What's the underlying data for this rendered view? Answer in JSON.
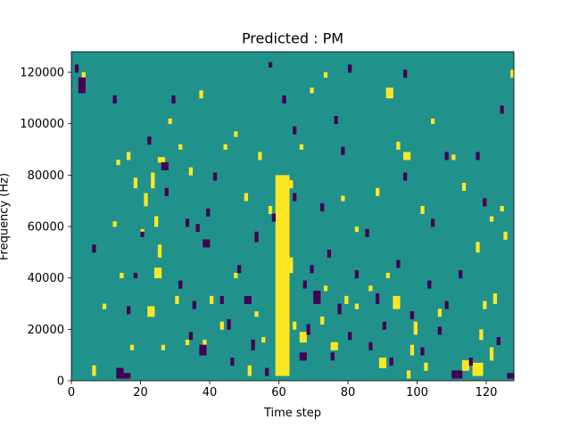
{
  "chart_data": {
    "type": "heatmap",
    "title": "Predicted : PM",
    "xlabel": "Time step",
    "ylabel": "Frequency (Hz)",
    "xlim": [
      0,
      128
    ],
    "ylim": [
      0,
      128000
    ],
    "xticks": [
      0,
      20,
      40,
      60,
      80,
      100,
      120
    ],
    "yticks": [
      0,
      20000,
      40000,
      60000,
      80000,
      100000,
      120000
    ],
    "rows": 128,
    "cols": 128,
    "palette": {
      "background": "#21918c",
      "high": "#fde725",
      "low": "#440154"
    },
    "high_rects": [
      [
        59,
        2,
        4,
        78
      ],
      [
        61,
        60,
        1,
        12
      ],
      [
        6,
        2,
        1,
        4
      ],
      [
        17,
        12,
        1,
        2
      ],
      [
        22,
        25,
        2,
        4
      ],
      [
        24,
        40,
        2,
        4
      ],
      [
        26,
        12,
        1,
        2
      ],
      [
        25,
        48,
        1,
        5
      ],
      [
        30,
        30,
        1,
        3
      ],
      [
        33,
        14,
        1,
        2
      ],
      [
        38,
        12,
        1,
        4
      ],
      [
        40,
        30,
        1,
        3
      ],
      [
        43,
        20,
        1,
        3
      ],
      [
        51,
        2,
        1,
        4
      ],
      [
        53,
        25,
        1,
        2
      ],
      [
        55,
        15,
        1,
        2
      ],
      [
        62,
        42,
        2,
        6
      ],
      [
        64,
        20,
        1,
        3
      ],
      [
        66,
        15,
        2,
        4
      ],
      [
        75,
        12,
        2,
        3
      ],
      [
        73,
        35,
        1,
        2
      ],
      [
        79,
        30,
        1,
        3
      ],
      [
        82,
        28,
        1,
        2
      ],
      [
        86,
        35,
        1,
        2
      ],
      [
        89,
        5,
        2,
        4
      ],
      [
        91,
        40,
        1,
        2
      ],
      [
        93,
        28,
        2,
        5
      ],
      [
        97,
        1,
        1,
        3
      ],
      [
        98,
        10,
        1,
        4
      ],
      [
        99,
        18,
        1,
        5
      ],
      [
        102,
        4,
        1,
        3
      ],
      [
        106,
        25,
        1,
        3
      ],
      [
        113,
        4,
        2,
        4
      ],
      [
        116,
        2,
        3,
        5
      ],
      [
        118,
        16,
        1,
        4
      ],
      [
        119,
        28,
        1,
        3
      ],
      [
        121,
        8,
        1,
        5
      ],
      [
        122,
        30,
        1,
        4
      ],
      [
        125,
        55,
        1,
        3
      ],
      [
        127,
        118,
        1,
        3
      ],
      [
        12,
        60,
        1,
        2
      ],
      [
        13,
        84,
        1,
        2
      ],
      [
        16,
        86,
        1,
        3
      ],
      [
        18,
        75,
        1,
        4
      ],
      [
        20,
        56,
        1,
        3
      ],
      [
        21,
        68,
        1,
        5
      ],
      [
        23,
        75,
        1,
        6
      ],
      [
        24,
        60,
        1,
        4
      ],
      [
        25,
        85,
        2,
        2
      ],
      [
        28,
        100,
        1,
        2
      ],
      [
        31,
        90,
        1,
        2
      ],
      [
        34,
        80,
        1,
        3
      ],
      [
        37,
        110,
        1,
        3
      ],
      [
        44,
        90,
        1,
        2
      ],
      [
        47,
        95,
        1,
        2
      ],
      [
        50,
        70,
        1,
        3
      ],
      [
        54,
        86,
        1,
        3
      ],
      [
        57,
        65,
        1,
        3
      ],
      [
        63,
        75,
        1,
        3
      ],
      [
        66,
        90,
        1,
        2
      ],
      [
        69,
        112,
        1,
        2
      ],
      [
        73,
        118,
        1,
        2
      ],
      [
        78,
        70,
        1,
        2
      ],
      [
        82,
        58,
        1,
        2
      ],
      [
        88,
        72,
        1,
        3
      ],
      [
        91,
        110,
        2,
        4
      ],
      [
        94,
        90,
        1,
        3
      ],
      [
        96,
        86,
        2,
        3
      ],
      [
        101,
        65,
        1,
        3
      ],
      [
        104,
        100,
        1,
        2
      ],
      [
        110,
        86,
        1,
        2
      ],
      [
        113,
        74,
        1,
        3
      ],
      [
        117,
        50,
        1,
        4
      ],
      [
        121,
        62,
        1,
        2
      ],
      [
        124,
        66,
        1,
        2
      ],
      [
        14,
        40,
        1,
        2
      ],
      [
        9,
        28,
        1,
        2
      ],
      [
        3,
        118,
        1,
        2
      ],
      [
        47,
        40,
        1,
        2
      ],
      [
        72,
        22,
        1,
        3
      ]
    ],
    "low_rects": [
      [
        2,
        112,
        2,
        6
      ],
      [
        1,
        120,
        1,
        3
      ],
      [
        13,
        1,
        2,
        4
      ],
      [
        15,
        1,
        2,
        2
      ],
      [
        16,
        26,
        1,
        3
      ],
      [
        20,
        56,
        1,
        2
      ],
      [
        26,
        82,
        2,
        3
      ],
      [
        18,
        40,
        1,
        2
      ],
      [
        33,
        60,
        1,
        3
      ],
      [
        34,
        16,
        1,
        3
      ],
      [
        35,
        28,
        1,
        3
      ],
      [
        36,
        58,
        1,
        3
      ],
      [
        37,
        10,
        2,
        4
      ],
      [
        38,
        52,
        2,
        3
      ],
      [
        39,
        64,
        1,
        3
      ],
      [
        41,
        78,
        1,
        3
      ],
      [
        43,
        30,
        1,
        3
      ],
      [
        45,
        20,
        1,
        4
      ],
      [
        46,
        6,
        1,
        3
      ],
      [
        48,
        42,
        1,
        3
      ],
      [
        50,
        30,
        2,
        3
      ],
      [
        52,
        12,
        1,
        4
      ],
      [
        53,
        54,
        1,
        4
      ],
      [
        56,
        2,
        1,
        3
      ],
      [
        58,
        62,
        1,
        3
      ],
      [
        61,
        108,
        1,
        3
      ],
      [
        64,
        70,
        1,
        3
      ],
      [
        66,
        8,
        2,
        3
      ],
      [
        67,
        36,
        1,
        3
      ],
      [
        68,
        18,
        1,
        4
      ],
      [
        69,
        42,
        1,
        3
      ],
      [
        70,
        30,
        2,
        5
      ],
      [
        72,
        66,
        1,
        3
      ],
      [
        74,
        48,
        1,
        3
      ],
      [
        75,
        8,
        1,
        3
      ],
      [
        76,
        100,
        1,
        3
      ],
      [
        77,
        26,
        1,
        4
      ],
      [
        78,
        88,
        1,
        3
      ],
      [
        80,
        16,
        1,
        3
      ],
      [
        82,
        40,
        1,
        3
      ],
      [
        85,
        56,
        1,
        3
      ],
      [
        86,
        12,
        1,
        3
      ],
      [
        88,
        30,
        1,
        4
      ],
      [
        90,
        20,
        1,
        3
      ],
      [
        92,
        6,
        1,
        3
      ],
      [
        94,
        44,
        1,
        3
      ],
      [
        96,
        78,
        1,
        3
      ],
      [
        98,
        24,
        1,
        3
      ],
      [
        101,
        10,
        1,
        3
      ],
      [
        103,
        36,
        1,
        3
      ],
      [
        104,
        60,
        1,
        3
      ],
      [
        106,
        18,
        1,
        3
      ],
      [
        108,
        28,
        1,
        3
      ],
      [
        110,
        1,
        3,
        3
      ],
      [
        112,
        40,
        1,
        3
      ],
      [
        115,
        6,
        1,
        3
      ],
      [
        117,
        86,
        1,
        3
      ],
      [
        119,
        68,
        1,
        3
      ],
      [
        123,
        14,
        1,
        3
      ],
      [
        124,
        104,
        1,
        3
      ],
      [
        126,
        1,
        2,
        2
      ],
      [
        22,
        92,
        1,
        3
      ],
      [
        27,
        72,
        1,
        3
      ],
      [
        29,
        108,
        1,
        3
      ],
      [
        31,
        36,
        1,
        3
      ],
      [
        57,
        122,
        1,
        2
      ],
      [
        64,
        96,
        1,
        3
      ],
      [
        80,
        120,
        1,
        3
      ],
      [
        96,
        118,
        1,
        3
      ],
      [
        108,
        86,
        1,
        3
      ],
      [
        12,
        108,
        1,
        3
      ],
      [
        6,
        50,
        1,
        3
      ]
    ]
  }
}
